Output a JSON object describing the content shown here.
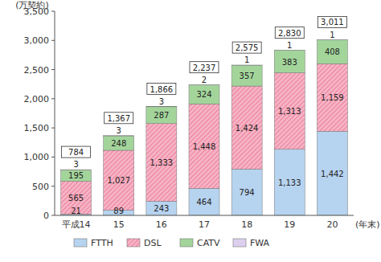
{
  "chart_data": {
    "type": "bar",
    "stacked": true,
    "data_labels": true,
    "grid": false,
    "legend": "bottom",
    "y_label": "(万契約)",
    "x_label": "(年末)",
    "categories": [
      "平成14",
      "15",
      "16",
      "17",
      "18",
      "19",
      "20"
    ],
    "ylim": [
      0,
      3500
    ],
    "yticks": [
      0,
      500,
      {
        "value": 1000,
        "label": "1,000"
      },
      {
        "value": 1500,
        "label": "1,500"
      },
      {
        "value": 2000,
        "label": "2,000"
      },
      {
        "value": 2500,
        "label": "2,500"
      },
      {
        "value": 3000,
        "label": "3,000"
      },
      {
        "value": 3500,
        "label": "3,500"
      }
    ],
    "series": [
      {
        "name": "FTTH",
        "color": "#b6d3ef",
        "values": [
          21,
          89,
          243,
          464,
          794,
          1133,
          1442
        ],
        "value_labels": [
          "21",
          "89",
          "243",
          "464",
          "794",
          "1,133",
          "1,442"
        ]
      },
      {
        "name": "DSL",
        "color": "#f6b3c6",
        "values": [
          565,
          1027,
          1333,
          1448,
          1424,
          1313,
          1159
        ],
        "value_labels": [
          "565",
          "1,027",
          "1,333",
          "1,448",
          "1,424",
          "1,313",
          "1,159"
        ]
      },
      {
        "name": "CATV",
        "color": "#a3d59b",
        "values": [
          195,
          248,
          287,
          324,
          357,
          383,
          408
        ]
      },
      {
        "name": "FWA",
        "color": "#ddd0ee",
        "values": [
          3,
          3,
          3,
          2,
          1,
          1,
          1
        ]
      }
    ],
    "totals": [
      784,
      1367,
      1866,
      2237,
      2575,
      2830,
      3011
    ],
    "total_labels": [
      "784",
      "1,367",
      "1,866",
      "2,237",
      "2,575",
      "2,830",
      "3,011"
    ]
  }
}
